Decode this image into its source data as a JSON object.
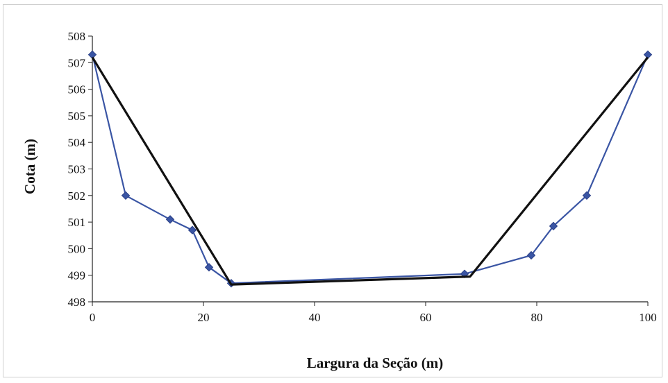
{
  "chart_data": {
    "type": "line",
    "title": "",
    "xlabel": "Largura da Seção (m)",
    "ylabel": "Cota (m)",
    "xlim": [
      0,
      100
    ],
    "ylim": [
      498,
      508
    ],
    "x_ticks": [
      "0",
      "20",
      "40",
      "60",
      "80",
      "100"
    ],
    "y_ticks": [
      "498",
      "499",
      "500",
      "501",
      "502",
      "503",
      "504",
      "505",
      "506",
      "507",
      "508"
    ],
    "grid": false,
    "legend": "none",
    "series": [
      {
        "color": "#3a55a4",
        "marker": "diamond",
        "points": [
          [
            0,
            507.3
          ],
          [
            6,
            502.0
          ],
          [
            14,
            501.1
          ],
          [
            18,
            500.7
          ],
          [
            21,
            499.3
          ],
          [
            25,
            498.7
          ],
          [
            67,
            499.05
          ],
          [
            79,
            499.75
          ],
          [
            83,
            500.85
          ],
          [
            89,
            502.0
          ],
          [
            100,
            507.3
          ]
        ]
      },
      {
        "color": "#111111",
        "marker": "none",
        "points": [
          [
            0,
            507.2
          ],
          [
            25,
            498.65
          ],
          [
            68,
            498.95
          ],
          [
            100,
            507.2
          ]
        ]
      }
    ]
  }
}
